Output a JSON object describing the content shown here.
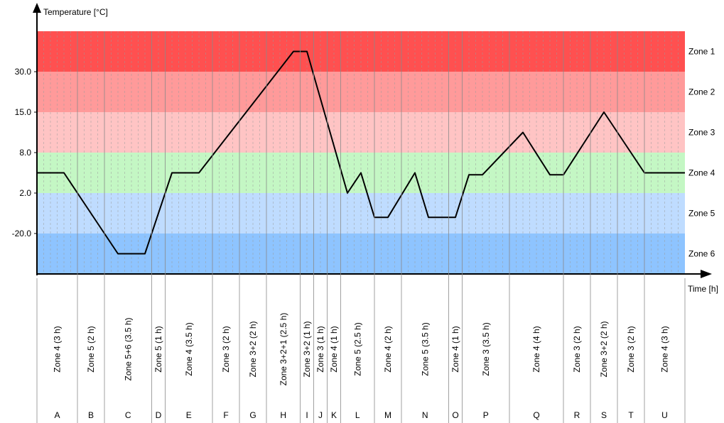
{
  "chart_data": {
    "type": "line",
    "ylabel": "Temperature [°C]",
    "xlabel": "Time [h]",
    "y_ticks": [
      "30.0",
      "15.0",
      "8.0",
      "2.0",
      "-20.0"
    ],
    "zones": [
      {
        "name": "Zone 1",
        "color": "#ff5050"
      },
      {
        "name": "Zone 2",
        "color": "#ff9a9a"
      },
      {
        "name": "Zone 3",
        "color": "#ffc4c4"
      },
      {
        "name": "Zone 4",
        "color": "#c4f7c4"
      },
      {
        "name": "Zone 5",
        "color": "#bfdcff"
      },
      {
        "name": "Zone 6",
        "color": "#8ec4ff"
      }
    ],
    "segments": [
      {
        "id": "A",
        "label": "Zone 4 (3 h)",
        "hours": 3
      },
      {
        "id": "B",
        "label": "Zone 5 (2 h)",
        "hours": 2
      },
      {
        "id": "C",
        "label": "Zone 5+6 (3.5 h)",
        "hours": 3.5
      },
      {
        "id": "D",
        "label": "Zone 5 (1 h)",
        "hours": 1
      },
      {
        "id": "E",
        "label": "Zone 4 (3.5 h)",
        "hours": 3.5
      },
      {
        "id": "F",
        "label": "Zone 3 (2 h)",
        "hours": 2
      },
      {
        "id": "G",
        "label": "Zone 3+2 (2 h)",
        "hours": 2
      },
      {
        "id": "H",
        "label": "Zone 3+2+1 (2.5 h)",
        "hours": 2.5
      },
      {
        "id": "I",
        "label": "Zone 3+2 (1 h)",
        "hours": 1
      },
      {
        "id": "J",
        "label": "Zone 3 (1 h)",
        "hours": 1
      },
      {
        "id": "K",
        "label": "Zone 4 (1 h)",
        "hours": 1
      },
      {
        "id": "L",
        "label": "Zone 5 (2.5 h)",
        "hours": 2.5
      },
      {
        "id": "M",
        "label": "Zone 4 (2 h)",
        "hours": 2
      },
      {
        "id": "N",
        "label": "Zone 5 (3.5 h)",
        "hours": 3.5
      },
      {
        "id": "O",
        "label": "Zone 4 (1 h)",
        "hours": 1
      },
      {
        "id": "P",
        "label": "Zone 3 (3.5 h)",
        "hours": 3.5
      },
      {
        "id": "Q",
        "label": "Zone 4 (4 h)",
        "hours": 4
      },
      {
        "id": "R",
        "label": "Zone 3 (2 h)",
        "hours": 2
      },
      {
        "id": "S",
        "label": "Zone 3+2 (2 h)",
        "hours": 2
      },
      {
        "id": "T",
        "label": "Zone 3 (2 h)",
        "hours": 2
      },
      {
        "id": "U",
        "label": "Zone 4 (3 h)",
        "hours": 3
      }
    ],
    "profile": [
      [
        0,
        3.5
      ],
      [
        2,
        3.5
      ],
      [
        6,
        5.5
      ],
      [
        8,
        5.5
      ],
      [
        10,
        3.5
      ],
      [
        12,
        3.5
      ],
      [
        19,
        0.5
      ],
      [
        20,
        0.5
      ],
      [
        23,
        4.0
      ],
      [
        24,
        3.5
      ],
      [
        25,
        4.6
      ],
      [
        26,
        4.6
      ],
      [
        28,
        3.5
      ],
      [
        29,
        4.6
      ],
      [
        31,
        4.6
      ],
      [
        32,
        3.55
      ],
      [
        33,
        3.55
      ],
      [
        36,
        2.5
      ],
      [
        38,
        3.55
      ],
      [
        39,
        3.55
      ],
      [
        42,
        2.0
      ],
      [
        45,
        3.5
      ],
      [
        48,
        3.5
      ]
    ]
  }
}
